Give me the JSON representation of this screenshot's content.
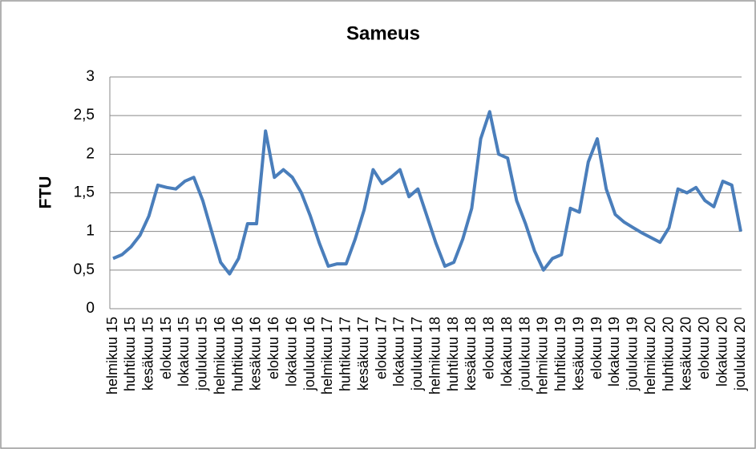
{
  "chart_data": {
    "type": "line",
    "title": "Sameus",
    "y_label": "FTU",
    "categories": [
      "helmikuu 15",
      null,
      "huhtikuu 15",
      null,
      "kesäkuu 15",
      null,
      "elokuu 15",
      null,
      "lokakuu 15",
      null,
      "joulukuu 15",
      null,
      "helmikuu 16",
      null,
      "huhtikuu 16",
      null,
      "kesäkuu 16",
      null,
      "elokuu 16",
      null,
      "lokakuu 16",
      null,
      "joulukuu 16",
      null,
      "helmikuu 17",
      null,
      "huhtikuu 17",
      null,
      "kesäkuu 17",
      null,
      "elokuu 17",
      null,
      "lokakuu 17",
      null,
      "joulukuu 17",
      null,
      "helmikuu 18",
      null,
      "huhtikuu 18",
      null,
      "kesäkuu 18",
      null,
      "elokuu 18",
      null,
      "lokakuu 18",
      null,
      "joulukuu 18",
      null,
      "helmikuu 19",
      null,
      "huhtikuu 19",
      null,
      "kesäkuu 19",
      null,
      "elokuu 19",
      null,
      "lokakuu 19",
      null,
      "joulukuu 19",
      null,
      "helmikuu 20",
      null,
      "huhtikuu 20",
      null,
      "kesäkuu 20",
      null,
      "elokuu 20",
      null,
      "lokakuu 20",
      null,
      "joulukuu 20"
    ],
    "series": [
      {
        "name": "Sameus",
        "color": "#4a7ebb",
        "values": [
          0.65,
          0.7,
          0.8,
          0.95,
          1.2,
          1.6,
          1.57,
          1.55,
          1.65,
          1.7,
          1.4,
          1.0,
          0.6,
          0.45,
          0.65,
          1.1,
          1.1,
          2.3,
          1.7,
          1.8,
          1.7,
          1.5,
          1.2,
          0.85,
          0.55,
          0.58,
          0.58,
          0.9,
          1.28,
          1.8,
          1.62,
          1.7,
          1.8,
          1.45,
          1.55,
          1.2,
          0.85,
          0.55,
          0.6,
          0.9,
          1.3,
          2.2,
          2.55,
          2.0,
          1.95,
          1.4,
          1.1,
          0.75,
          0.5,
          0.65,
          0.7,
          1.3,
          1.25,
          1.9,
          2.2,
          1.55,
          1.22,
          1.12,
          1.05,
          0.98,
          0.92,
          0.86,
          1.05,
          1.55,
          1.5,
          1.57,
          1.4,
          1.32,
          1.65,
          1.6,
          1.0
        ]
      }
    ],
    "ylim": [
      0,
      3
    ],
    "yticks": [
      0,
      {
        "value": 0.5,
        "label": "0,5"
      },
      1,
      {
        "value": 1.5,
        "label": "1,5"
      },
      2,
      {
        "value": 2.5,
        "label": "2,5"
      },
      3
    ],
    "grid": true
  }
}
